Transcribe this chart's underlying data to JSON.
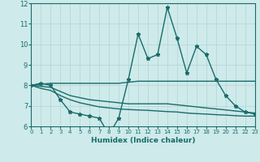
{
  "xlabel": "Humidex (Indice chaleur)",
  "xlim": [
    0,
    23
  ],
  "ylim": [
    6,
    12
  ],
  "yticks": [
    6,
    7,
    8,
    9,
    10,
    11,
    12
  ],
  "xticks": [
    0,
    1,
    2,
    3,
    4,
    5,
    6,
    7,
    8,
    9,
    10,
    11,
    12,
    13,
    14,
    15,
    16,
    17,
    18,
    19,
    20,
    21,
    22,
    23
  ],
  "background_color": "#ceeaea",
  "grid_color": "#b8d8d8",
  "line_color": "#1a6b6b",
  "line_width": 1.0,
  "marker": "*",
  "marker_size": 3.5,
  "series": [
    {
      "x": [
        0,
        1,
        2,
        3,
        4,
        5,
        6,
        7,
        8,
        9,
        10,
        11,
        12,
        13,
        14,
        15,
        16,
        17,
        18,
        19,
        20,
        21,
        22,
        23
      ],
      "y": [
        8.0,
        8.1,
        8.0,
        7.3,
        6.7,
        6.6,
        6.5,
        6.4,
        5.6,
        6.4,
        8.3,
        10.5,
        9.3,
        9.5,
        11.8,
        10.3,
        8.6,
        9.9,
        9.5,
        8.3,
        7.5,
        7.0,
        6.7,
        6.6
      ],
      "has_markers": true
    },
    {
      "x": [
        0,
        1,
        2,
        3,
        4,
        5,
        6,
        7,
        8,
        9,
        10,
        11,
        12,
        13,
        14,
        15,
        16,
        17,
        18,
        19,
        20,
        21,
        22,
        23
      ],
      "y": [
        8.0,
        8.05,
        8.1,
        8.1,
        8.1,
        8.1,
        8.1,
        8.1,
        8.1,
        8.1,
        8.15,
        8.2,
        8.2,
        8.2,
        8.2,
        8.2,
        8.2,
        8.2,
        8.2,
        8.2,
        8.2,
        8.2,
        8.2,
        8.2
      ],
      "has_markers": false
    },
    {
      "x": [
        0,
        1,
        2,
        3,
        4,
        5,
        6,
        7,
        8,
        9,
        10,
        11,
        12,
        13,
        14,
        15,
        16,
        17,
        18,
        19,
        20,
        21,
        22,
        23
      ],
      "y": [
        8.0,
        7.95,
        7.9,
        7.7,
        7.5,
        7.4,
        7.3,
        7.25,
        7.2,
        7.15,
        7.1,
        7.1,
        7.1,
        7.1,
        7.1,
        7.05,
        7.0,
        6.95,
        6.9,
        6.85,
        6.8,
        6.75,
        6.7,
        6.65
      ],
      "has_markers": false
    },
    {
      "x": [
        0,
        1,
        2,
        3,
        4,
        5,
        6,
        7,
        8,
        9,
        10,
        11,
        12,
        13,
        14,
        15,
        16,
        17,
        18,
        19,
        20,
        21,
        22,
        23
      ],
      "y": [
        8.0,
        7.85,
        7.75,
        7.5,
        7.3,
        7.15,
        7.05,
        6.95,
        6.9,
        6.85,
        6.82,
        6.8,
        6.78,
        6.75,
        6.72,
        6.7,
        6.65,
        6.62,
        6.6,
        6.57,
        6.55,
        6.52,
        6.5,
        6.5
      ],
      "has_markers": false
    }
  ]
}
